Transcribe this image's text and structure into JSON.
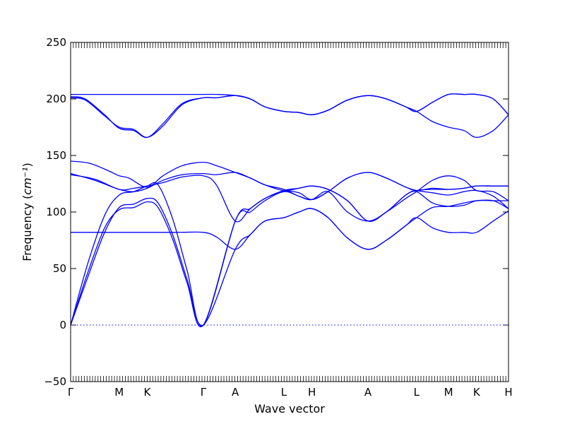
{
  "chart_data": {
    "type": "line",
    "title": "",
    "xlabel": "Wave vector",
    "ylabel": "Frequency",
    "ylabel_unit": "cm⁻¹",
    "ylim": [
      -50,
      250
    ],
    "yticks": [
      -50,
      0,
      50,
      100,
      150,
      200,
      250
    ],
    "xticks": [
      {
        "label": "Γ",
        "x": 0
      },
      {
        "label": "M",
        "x": 1
      },
      {
        "label": "K",
        "x": 1.577
      },
      {
        "label": "Γ",
        "x": 2.732
      },
      {
        "label": "A",
        "x": 3.39
      },
      {
        "label": "L",
        "x": 4.39
      },
      {
        "label": "H",
        "x": 4.967
      },
      {
        "label": "A",
        "x": 6.122
      },
      {
        "label": "L",
        "x": 7.122
      },
      {
        "label": "M",
        "x": 7.78
      },
      {
        "label": "K",
        "x": 8.357
      },
      {
        "label": "H",
        "x": 9.015
      }
    ],
    "xlim": [
      0,
      9.015
    ],
    "zero_line": true,
    "line_color": "#0000ff",
    "series": [
      {
        "values": [
          [
            0,
            0
          ],
          [
            0.35,
            42
          ],
          [
            0.7,
            82
          ],
          [
            1.0,
            104
          ],
          [
            1.3,
            107
          ],
          [
            1.577,
            112
          ],
          [
            1.8,
            108
          ],
          [
            2.1,
            80
          ],
          [
            2.4,
            40
          ],
          [
            2.732,
            0
          ],
          [
            3.39,
            67
          ],
          [
            3.7,
            80
          ],
          [
            4.0,
            92
          ],
          [
            4.39,
            95
          ],
          [
            4.7,
            100
          ],
          [
            4.967,
            103
          ],
          [
            5.3,
            95
          ],
          [
            5.7,
            77
          ],
          [
            6.122,
            67
          ],
          [
            6.5,
            75
          ],
          [
            6.9,
            88
          ],
          [
            7.122,
            95
          ],
          [
            7.45,
            86
          ],
          [
            7.78,
            82
          ],
          [
            8.1,
            82
          ],
          [
            8.357,
            82
          ],
          [
            8.7,
            92
          ],
          [
            9.015,
            101
          ]
        ]
      },
      {
        "values": [
          [
            0,
            0
          ],
          [
            0.35,
            46
          ],
          [
            0.7,
            86
          ],
          [
            1.0,
            102
          ],
          [
            1.3,
            104
          ],
          [
            1.577,
            109
          ],
          [
            1.8,
            104
          ],
          [
            2.1,
            76
          ],
          [
            2.4,
            37
          ],
          [
            2.732,
            0
          ],
          [
            3.39,
            92
          ],
          [
            3.7,
            100
          ],
          [
            4.0,
            110
          ],
          [
            4.39,
            118
          ],
          [
            4.7,
            114
          ],
          [
            4.967,
            111
          ],
          [
            5.3,
            118
          ],
          [
            5.7,
            100
          ],
          [
            6.122,
            92
          ],
          [
            6.5,
            100
          ],
          [
            6.9,
            115
          ],
          [
            7.122,
            118
          ],
          [
            7.45,
            108
          ],
          [
            7.78,
            105
          ],
          [
            8.1,
            106
          ],
          [
            8.357,
            110
          ],
          [
            8.7,
            110
          ],
          [
            9.015,
            110
          ]
        ]
      },
      {
        "values": [
          [
            0,
            0
          ],
          [
            0.35,
            54
          ],
          [
            0.7,
            97
          ],
          [
            1.0,
            115
          ],
          [
            1.3,
            118
          ],
          [
            1.577,
            123
          ],
          [
            1.8,
            124
          ],
          [
            2.1,
            94
          ],
          [
            2.4,
            48
          ],
          [
            2.732,
            0
          ],
          [
            3.39,
            92
          ],
          [
            3.7,
            103
          ],
          [
            4.0,
            112
          ],
          [
            4.39,
            119
          ],
          [
            4.7,
            121
          ],
          [
            4.967,
            123
          ],
          [
            5.3,
            120
          ],
          [
            5.7,
            110
          ],
          [
            6.122,
            92
          ],
          [
            6.5,
            100
          ],
          [
            6.9,
            115
          ],
          [
            7.122,
            119
          ],
          [
            7.45,
            120
          ],
          [
            7.78,
            120
          ],
          [
            8.1,
            121
          ],
          [
            8.357,
            123
          ],
          [
            8.7,
            123
          ],
          [
            9.015,
            123
          ]
        ]
      },
      {
        "values": [
          [
            0,
            82
          ],
          [
            0.5,
            82
          ],
          [
            1.0,
            82
          ],
          [
            1.577,
            82
          ],
          [
            2.2,
            82
          ],
          [
            2.732,
            82
          ],
          [
            3.0,
            78
          ],
          [
            3.39,
            67
          ],
          [
            3.7,
            80
          ],
          [
            4.0,
            92
          ],
          [
            4.39,
            95
          ],
          [
            4.7,
            100
          ],
          [
            4.967,
            103
          ],
          [
            5.3,
            95
          ],
          [
            5.7,
            77
          ],
          [
            6.122,
            67
          ],
          [
            6.5,
            75
          ],
          [
            6.9,
            88
          ],
          [
            7.122,
            95
          ],
          [
            7.45,
            104
          ],
          [
            7.78,
            105
          ],
          [
            8.1,
            108
          ],
          [
            8.357,
            110
          ],
          [
            8.7,
            110
          ],
          [
            9.015,
            103
          ]
        ]
      },
      {
        "values": [
          [
            0,
            133
          ],
          [
            0.5,
            129
          ],
          [
            1.0,
            120
          ],
          [
            1.3,
            121
          ],
          [
            1.577,
            123
          ],
          [
            1.9,
            126
          ],
          [
            2.3,
            131
          ],
          [
            2.732,
            132
          ],
          [
            3.0,
            124
          ],
          [
            3.39,
            92
          ],
          [
            3.7,
            103
          ],
          [
            4.0,
            112
          ],
          [
            4.39,
            118
          ],
          [
            4.7,
            117
          ],
          [
            4.967,
            111
          ],
          [
            5.3,
            118
          ],
          [
            5.7,
            130
          ],
          [
            6.122,
            135
          ],
          [
            6.5,
            130
          ],
          [
            6.9,
            122
          ],
          [
            7.122,
            119
          ],
          [
            7.45,
            117
          ],
          [
            7.78,
            115
          ],
          [
            8.1,
            118
          ],
          [
            8.357,
            119
          ],
          [
            8.7,
            114
          ],
          [
            9.015,
            103
          ]
        ]
      },
      {
        "values": [
          [
            0,
            134
          ],
          [
            0.5,
            128
          ],
          [
            1.0,
            120
          ],
          [
            1.3,
            118
          ],
          [
            1.577,
            121
          ],
          [
            1.9,
            128
          ],
          [
            2.3,
            133
          ],
          [
            2.732,
            134
          ],
          [
            3.0,
            133
          ],
          [
            3.39,
            135
          ],
          [
            3.7,
            130
          ],
          [
            4.0,
            124
          ],
          [
            4.39,
            119
          ],
          [
            4.7,
            121
          ],
          [
            4.967,
            123
          ],
          [
            5.3,
            120
          ],
          [
            5.7,
            110
          ],
          [
            6.122,
            92
          ],
          [
            6.5,
            100
          ],
          [
            6.9,
            112
          ],
          [
            7.122,
            118
          ],
          [
            7.45,
            128
          ],
          [
            7.78,
            132
          ],
          [
            8.1,
            128
          ],
          [
            8.357,
            119
          ],
          [
            8.7,
            118
          ],
          [
            9.015,
            110
          ]
        ]
      },
      {
        "values": [
          [
            0,
            145
          ],
          [
            0.4,
            143
          ],
          [
            0.8,
            136
          ],
          [
            1.0,
            132
          ],
          [
            1.2,
            130
          ],
          [
            1.577,
            122
          ],
          [
            1.9,
            132
          ],
          [
            2.3,
            141
          ],
          [
            2.732,
            144
          ],
          [
            3.0,
            141
          ],
          [
            3.39,
            135
          ],
          [
            3.7,
            130
          ],
          [
            4.0,
            124
          ],
          [
            4.39,
            120
          ],
          [
            4.7,
            114
          ],
          [
            4.967,
            111
          ],
          [
            5.3,
            118
          ],
          [
            5.7,
            130
          ],
          [
            6.122,
            135
          ],
          [
            6.5,
            130
          ],
          [
            6.9,
            122
          ],
          [
            7.122,
            119
          ],
          [
            7.45,
            121
          ],
          [
            7.78,
            120
          ],
          [
            8.1,
            121
          ],
          [
            8.357,
            123
          ],
          [
            8.7,
            123
          ],
          [
            9.015,
            123
          ]
        ]
      },
      {
        "values": [
          [
            0,
            201
          ],
          [
            0.3,
            199
          ],
          [
            0.7,
            185
          ],
          [
            1.0,
            175
          ],
          [
            1.3,
            173
          ],
          [
            1.577,
            166
          ],
          [
            1.9,
            176
          ],
          [
            2.3,
            195
          ],
          [
            2.732,
            201
          ],
          [
            3.0,
            201
          ],
          [
            3.39,
            203
          ],
          [
            3.7,
            200
          ],
          [
            4.0,
            193
          ],
          [
            4.39,
            189
          ],
          [
            4.7,
            188
          ],
          [
            4.967,
            186
          ],
          [
            5.3,
            190
          ],
          [
            5.7,
            199
          ],
          [
            6.122,
            203
          ],
          [
            6.5,
            200
          ],
          [
            6.9,
            193
          ],
          [
            7.122,
            189
          ],
          [
            7.45,
            180
          ],
          [
            7.78,
            175
          ],
          [
            8.1,
            172
          ],
          [
            8.357,
            166
          ],
          [
            8.7,
            172
          ],
          [
            9.015,
            186
          ]
        ]
      },
      {
        "values": [
          [
            0,
            202
          ],
          [
            0.3,
            200
          ],
          [
            0.7,
            186
          ],
          [
            1.0,
            174
          ],
          [
            1.3,
            172
          ],
          [
            1.577,
            166
          ],
          [
            1.9,
            178
          ],
          [
            2.3,
            196
          ],
          [
            2.732,
            201
          ],
          [
            3.0,
            201
          ],
          [
            3.39,
            203
          ],
          [
            3.7,
            200
          ],
          [
            4.0,
            193
          ],
          [
            4.39,
            189
          ],
          [
            4.7,
            188
          ],
          [
            4.967,
            186
          ],
          [
            5.3,
            190
          ],
          [
            5.7,
            199
          ],
          [
            6.122,
            203
          ],
          [
            6.5,
            200
          ],
          [
            6.9,
            193
          ],
          [
            7.122,
            189
          ],
          [
            7.45,
            197
          ],
          [
            7.78,
            204
          ],
          [
            8.1,
            204
          ],
          [
            8.357,
            204
          ],
          [
            8.7,
            200
          ],
          [
            9.015,
            186
          ]
        ]
      },
      {
        "values": [
          [
            0,
            204
          ],
          [
            0.5,
            204
          ],
          [
            1.0,
            204
          ],
          [
            1.577,
            204
          ],
          [
            2.2,
            204
          ],
          [
            2.732,
            204
          ],
          [
            3.0,
            204
          ],
          [
            3.39,
            203
          ],
          [
            3.7,
            200
          ],
          [
            4.0,
            193
          ],
          [
            4.39,
            189
          ],
          [
            4.7,
            188
          ],
          [
            4.967,
            186
          ],
          [
            5.3,
            190
          ],
          [
            5.7,
            199
          ],
          [
            6.122,
            203
          ],
          [
            6.5,
            200
          ],
          [
            6.9,
            193
          ],
          [
            7.122,
            189
          ],
          [
            7.45,
            197
          ],
          [
            7.78,
            204
          ],
          [
            8.1,
            204
          ],
          [
            8.357,
            204
          ],
          [
            8.7,
            200
          ],
          [
            9.015,
            186
          ]
        ]
      }
    ]
  }
}
